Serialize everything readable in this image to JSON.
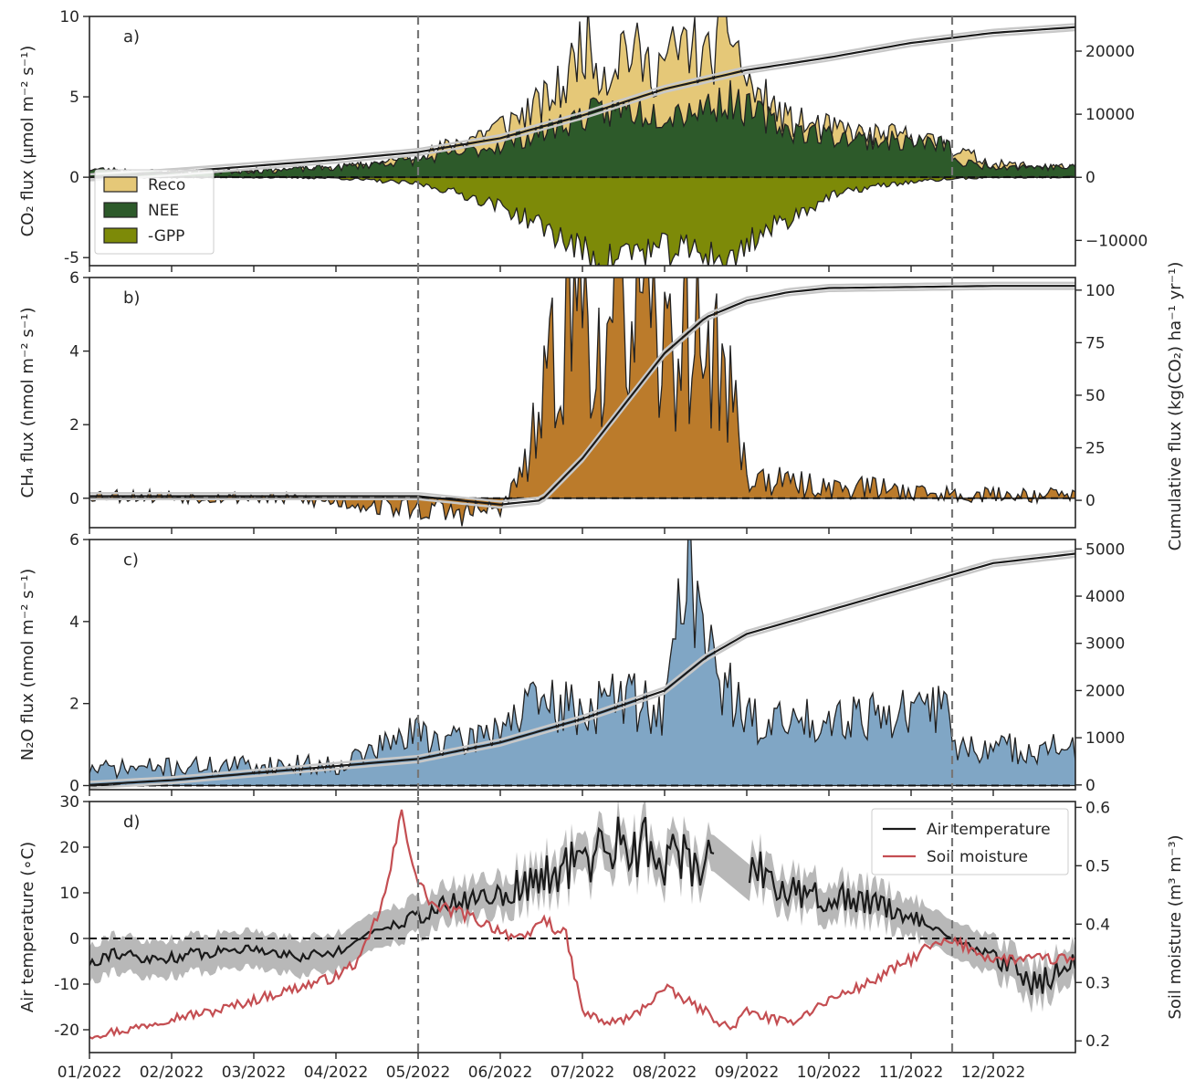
{
  "figure": {
    "date_ticks": [
      "01/2022",
      "02/2022",
      "03/2022",
      "04/2022",
      "05/2022",
      "06/2022",
      "07/2022",
      "08/2022",
      "09/2022",
      "10/2022",
      "11/2022",
      "12/2022"
    ],
    "vlines_month": [
      4,
      10.5
    ],
    "shared_right_label": "Cumulative flux (kg(CO₂) ha⁻¹ yr⁻¹)"
  },
  "chart_data": [
    {
      "id": "a",
      "type": "area",
      "panel_label": "a)",
      "ylabel": "CO₂ flux (μmol m⁻² s⁻¹)",
      "ylim": [
        -5.5,
        10
      ],
      "yticks": [
        -5,
        0,
        5,
        10
      ],
      "y2lim": [
        -14000,
        25500
      ],
      "y2ticks": [
        -10000,
        0,
        10000,
        20000
      ],
      "y2ticklabels": [
        "−10000",
        "0",
        "10000",
        "20000"
      ],
      "legend": {
        "placement": "lower-left",
        "entries": [
          "Reco",
          "NEE",
          "-GPP"
        ]
      },
      "colors": {
        "Reco": "#e5c878",
        "NEE": "#2d5a2a",
        "-GPP": "#7d8a08",
        "cumulative": "#1a1a1a",
        "cumulative_band": "#c8c8c8"
      },
      "series": [
        {
          "name": "Reco",
          "x_month": [
            0,
            1,
            2,
            3,
            4,
            4.5,
            5,
            5.5,
            5.8,
            6,
            6.3,
            6.5,
            6.8,
            7,
            7.3,
            7.5,
            7.8,
            8,
            8.5,
            9,
            9.5,
            10,
            10.5,
            11,
            12
          ],
          "values": [
            0.4,
            0.3,
            0.4,
            0.5,
            1.2,
            2.2,
            3.2,
            4.5,
            5.8,
            8.8,
            6.4,
            8.4,
            6.8,
            7.2,
            8.3,
            7.1,
            9.7,
            5.8,
            3.5,
            3.0,
            2.6,
            2.5,
            1.8,
            0.8,
            0.6
          ]
        },
        {
          "name": "NEE",
          "x_month": [
            0,
            1,
            2,
            3,
            4,
            4.5,
            5,
            5.5,
            6,
            6.5,
            7,
            7.5,
            7.8,
            8,
            8.5,
            9,
            9.5,
            10,
            10.45,
            10.55,
            11,
            12
          ],
          "values": [
            0.5,
            0.3,
            0.4,
            0.6,
            1.1,
            1.5,
            2.0,
            2.8,
            3.8,
            4.2,
            4.0,
            4.4,
            4.8,
            4.2,
            3.0,
            2.6,
            2.3,
            2.2,
            2.0,
            0.9,
            0.7,
            0.6
          ]
        },
        {
          "name": "-GPP",
          "x_month": [
            0,
            1,
            2,
            3,
            4,
            4.5,
            5,
            5.5,
            6,
            6.3,
            6.5,
            7,
            7.5,
            7.8,
            8,
            8.5,
            9,
            9.5,
            10,
            10.5,
            11,
            12
          ],
          "values": [
            0,
            0,
            0,
            -0.05,
            -0.4,
            -1.0,
            -1.8,
            -3.0,
            -4.6,
            -5.3,
            -4.6,
            -4.5,
            -4.6,
            -5.4,
            -4.0,
            -2.6,
            -1.2,
            -0.6,
            -0.3,
            -0.1,
            0,
            0
          ]
        },
        {
          "name": "cumulative",
          "axis": "right",
          "x_month": [
            0,
            1,
            2,
            3,
            4,
            5,
            6,
            7,
            8,
            9,
            10,
            11,
            12
          ],
          "values": [
            0,
            800,
            1800,
            2800,
            4000,
            6200,
            9800,
            14000,
            17000,
            19000,
            21300,
            22900,
            23800
          ]
        }
      ]
    },
    {
      "id": "b",
      "type": "area",
      "panel_label": "b)",
      "ylabel": "CH₄ flux (nmol m⁻² s⁻¹)",
      "ylim": [
        -0.8,
        6
      ],
      "yticks": [
        0,
        2,
        4,
        6
      ],
      "y2lim": [
        -13,
        106
      ],
      "y2ticks": [
        0,
        25,
        50,
        75,
        100
      ],
      "colors": {
        "CH4": "#bb7b2b",
        "cumulative": "#1a1a1a",
        "cumulative_band": "#c8c8c8"
      },
      "series": [
        {
          "name": "CH4",
          "x_month": [
            0,
            1,
            2,
            3,
            4,
            4.5,
            5,
            5.3,
            5.5,
            5.8,
            6,
            6.3,
            6.5,
            6.8,
            7,
            7.3,
            7.5,
            7.8,
            8,
            8.5,
            9,
            9.5,
            10,
            10.5,
            11,
            12
          ],
          "values": [
            0.1,
            0.05,
            0.02,
            -0.1,
            -0.3,
            -0.4,
            -0.3,
            0.8,
            2.4,
            4.8,
            5.5,
            3.3,
            5.9,
            4.3,
            3.9,
            4.7,
            4.2,
            3.0,
            0.6,
            0.4,
            0.3,
            0.3,
            0.2,
            0.1,
            0.1,
            0.1
          ]
        },
        {
          "name": "cumulative",
          "axis": "right",
          "x_month": [
            0,
            1,
            2,
            3,
            4,
            4.5,
            5,
            5.5,
            6,
            6.5,
            7,
            7.5,
            8,
            8.5,
            9,
            10,
            11,
            12
          ],
          "values": [
            2,
            2,
            2,
            2,
            2,
            0,
            -2,
            0,
            20,
            45,
            70,
            87,
            95,
            99,
            101,
            101.5,
            102,
            102
          ]
        }
      ]
    },
    {
      "id": "c",
      "type": "area",
      "panel_label": "c)",
      "ylabel": "N₂O flux (nmol m⁻² s⁻¹)",
      "ylim": [
        -0.1,
        6
      ],
      "yticks": [
        0,
        2,
        4,
        6
      ],
      "y2lim": [
        -100,
        5200
      ],
      "y2ticks": [
        0,
        1000,
        2000,
        3000,
        4000,
        5000
      ],
      "colors": {
        "N2O": "#80a6c5",
        "cumulative": "#1a1a1a",
        "cumulative_band": "#c8c8c8"
      },
      "series": [
        {
          "name": "N2O",
          "x_month": [
            0,
            1,
            2,
            3,
            4,
            4.5,
            5,
            5.5,
            6,
            6.5,
            7,
            7.3,
            7.5,
            7.8,
            8,
            8.5,
            9,
            9.5,
            10,
            10.45,
            10.55,
            11,
            12
          ],
          "values": [
            0.4,
            0.45,
            0.5,
            0.5,
            1.3,
            1.0,
            1.5,
            2.0,
            1.8,
            2.2,
            1.8,
            6.0,
            3.2,
            2.3,
            1.6,
            1.5,
            1.7,
            1.8,
            1.7,
            2.0,
            0.9,
            0.9,
            0.9
          ]
        },
        {
          "name": "cumulative",
          "axis": "right",
          "x_month": [
            0,
            1,
            2,
            3,
            4,
            5,
            6,
            7,
            7.5,
            8,
            9,
            10,
            11,
            12
          ],
          "values": [
            0,
            100,
            250,
            400,
            550,
            900,
            1400,
            2000,
            2700,
            3200,
            3700,
            4200,
            4700,
            4900
          ]
        }
      ]
    },
    {
      "id": "d",
      "type": "line",
      "panel_label": "d)",
      "ylabel": "Air temperature (∘C)",
      "ylim": [
        -25,
        30
      ],
      "yticks": [
        -20,
        -10,
        0,
        10,
        20,
        30
      ],
      "y2label": "Soil moisture (m³ m⁻³)",
      "y2lim": [
        0.18,
        0.61
      ],
      "y2ticks": [
        0.2,
        0.3,
        0.4,
        0.5,
        0.6
      ],
      "legend": {
        "placement": "top-right",
        "entries": [
          "Air temperature",
          "Soil moisture"
        ]
      },
      "colors": {
        "Air temperature": "#1a1a1a",
        "Soil moisture": "#c44e52",
        "band": "#b8b8b8"
      },
      "series": [
        {
          "name": "Air temperature",
          "x_month": [
            0,
            0.3,
            0.7,
            1,
            1.5,
            2,
            2.5,
            3,
            3.5,
            4,
            4.5,
            5,
            5.5,
            6,
            6.5,
            7,
            7.5,
            7.6,
            7.75,
            8,
            8.5,
            9,
            9.5,
            10,
            10.5,
            11,
            11.5,
            12
          ],
          "values": [
            -5,
            -3,
            -5,
            -4,
            -3,
            -2,
            -4,
            -3,
            2,
            5,
            8,
            10,
            13,
            17,
            22,
            18,
            16,
            21,
            null,
            18,
            10,
            9,
            8,
            5,
            0,
            -4,
            -10,
            -5
          ]
        },
        {
          "name": "Soil moisture",
          "axis": "right",
          "x_month": [
            0,
            0.5,
            1,
            1.5,
            2,
            2.5,
            3,
            3.3,
            3.6,
            3.8,
            4,
            4.2,
            4.5,
            5,
            5.3,
            5.5,
            5.8,
            6,
            6.3,
            6.6,
            7,
            7.5,
            7.8,
            8,
            8.5,
            9,
            9.5,
            10,
            10.2,
            10.5,
            10.7,
            11,
            12
          ],
          "values": [
            0.21,
            0.22,
            0.24,
            0.25,
            0.27,
            0.29,
            0.31,
            0.34,
            0.45,
            0.59,
            0.47,
            0.43,
            0.42,
            0.39,
            0.37,
            0.41,
            0.38,
            0.25,
            0.23,
            0.24,
            0.29,
            0.25,
            0.22,
            0.25,
            0.23,
            0.27,
            0.3,
            0.34,
            0.36,
            0.37,
            0.36,
            0.34,
            0.34
          ]
        }
      ]
    }
  ]
}
